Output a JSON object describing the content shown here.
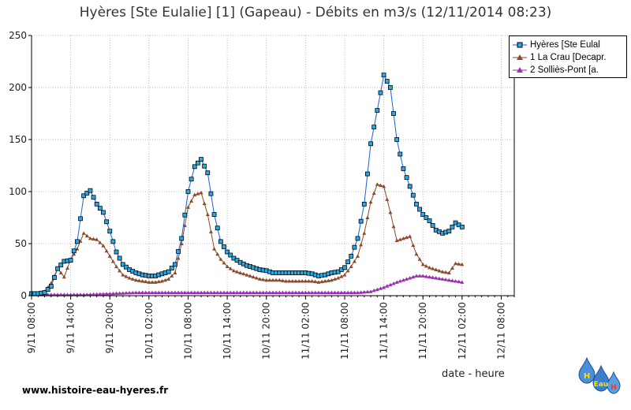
{
  "title": "Hyères [Ste Eulalie] [1] (Gapeau) - Débits en m3/s (12/11/2014 08:23)",
  "website": "www.histoire-eau-hyeres.fr",
  "logo_letters": [
    "H",
    "Eau",
    "H"
  ],
  "colors": {
    "series_0": "#1f5fd6",
    "series_0_fill": "#2aa9e8",
    "series_1": "#8b4a2b",
    "series_2": "#9b2fb0",
    "axis": "#000000",
    "grid": "#bbbbbb"
  },
  "chart_data": {
    "type": "line",
    "title": "Hyères [Ste Eulalie] [1] (Gapeau) - Débits en m3/s (12/11/2014 08:23)",
    "xlabel": "date - heure",
    "ylabel": "",
    "ylim": [
      0,
      250
    ],
    "yticks": [
      0,
      50,
      100,
      150,
      200,
      250
    ],
    "xlim_hours": [
      0,
      74
    ],
    "xticks": [
      "9/11  08:00",
      "9/11  14:00",
      "9/11  20:00",
      "10/11  02:00",
      "10/11  08:00",
      "10/11  14:00",
      "10/11  20:00",
      "11/11  02:00",
      "11/11  08:00",
      "11/11  14:00",
      "11/11  20:00",
      "12/11  02:00",
      "12/11  08:00"
    ],
    "grid": true,
    "legend_position": "top-right",
    "series": [
      {
        "name": "Hyères [Ste Eulal",
        "marker": "square",
        "points": [
          [
            0,
            2
          ],
          [
            1,
            2
          ],
          [
            2,
            3
          ],
          [
            3,
            9
          ],
          [
            4,
            26
          ],
          [
            5,
            33
          ],
          [
            6,
            34
          ],
          [
            7,
            52
          ],
          [
            8,
            96
          ],
          [
            9,
            101
          ],
          [
            10,
            88
          ],
          [
            11,
            80
          ],
          [
            12,
            62
          ],
          [
            13,
            42
          ],
          [
            14,
            30
          ],
          [
            15,
            25
          ],
          [
            16,
            22
          ],
          [
            17,
            20
          ],
          [
            18,
            19
          ],
          [
            19,
            19
          ],
          [
            20,
            21
          ],
          [
            21,
            23
          ],
          [
            22,
            30
          ],
          [
            23,
            55
          ],
          [
            24,
            100
          ],
          [
            25,
            124
          ],
          [
            26,
            131
          ],
          [
            27,
            118
          ],
          [
            28,
            78
          ],
          [
            29,
            52
          ],
          [
            30,
            42
          ],
          [
            31,
            36
          ],
          [
            32,
            32
          ],
          [
            33,
            29
          ],
          [
            34,
            27
          ],
          [
            35,
            25
          ],
          [
            36,
            24
          ],
          [
            37,
            22
          ],
          [
            38,
            22
          ],
          [
            39,
            22
          ],
          [
            40,
            22
          ],
          [
            41,
            22
          ],
          [
            42,
            22
          ],
          [
            43,
            21
          ],
          [
            44,
            19
          ],
          [
            45,
            20
          ],
          [
            46,
            22
          ],
          [
            47,
            23
          ],
          [
            48,
            27
          ],
          [
            49,
            38
          ],
          [
            50,
            55
          ],
          [
            51,
            88
          ],
          [
            52,
            146
          ],
          [
            53,
            178
          ],
          [
            54,
            212
          ],
          [
            55,
            200
          ],
          [
            56,
            150
          ],
          [
            57,
            122
          ],
          [
            58,
            105
          ],
          [
            59,
            88
          ],
          [
            60,
            78
          ],
          [
            61,
            72
          ],
          [
            62,
            63
          ],
          [
            63,
            60
          ],
          [
            64,
            62
          ],
          [
            65,
            70
          ],
          [
            66,
            66
          ]
        ]
      },
      {
        "name": "1 La Crau [Decapr.",
        "marker": "triangle",
        "points": [
          [
            0,
            2
          ],
          [
            1,
            2
          ],
          [
            2,
            4
          ],
          [
            3,
            12
          ],
          [
            4,
            26
          ],
          [
            5,
            18
          ],
          [
            6,
            35
          ],
          [
            7,
            45
          ],
          [
            8,
            60
          ],
          [
            9,
            55
          ],
          [
            10,
            54
          ],
          [
            11,
            48
          ],
          [
            12,
            38
          ],
          [
            13,
            28
          ],
          [
            14,
            20
          ],
          [
            15,
            17
          ],
          [
            16,
            15
          ],
          [
            17,
            14
          ],
          [
            18,
            13
          ],
          [
            19,
            13
          ],
          [
            20,
            14
          ],
          [
            21,
            16
          ],
          [
            22,
            22
          ],
          [
            23,
            50
          ],
          [
            24,
            85
          ],
          [
            25,
            97
          ],
          [
            26,
            99
          ],
          [
            27,
            78
          ],
          [
            28,
            45
          ],
          [
            29,
            35
          ],
          [
            30,
            28
          ],
          [
            31,
            24
          ],
          [
            32,
            22
          ],
          [
            33,
            20
          ],
          [
            34,
            18
          ],
          [
            35,
            16
          ],
          [
            36,
            15
          ],
          [
            37,
            15
          ],
          [
            38,
            15
          ],
          [
            39,
            14
          ],
          [
            40,
            14
          ],
          [
            41,
            14
          ],
          [
            42,
            14
          ],
          [
            43,
            14
          ],
          [
            44,
            13
          ],
          [
            45,
            14
          ],
          [
            46,
            15
          ],
          [
            47,
            17
          ],
          [
            48,
            20
          ],
          [
            49,
            28
          ],
          [
            50,
            38
          ],
          [
            51,
            60
          ],
          [
            52,
            90
          ],
          [
            53,
            107
          ],
          [
            54,
            105
          ],
          [
            55,
            80
          ],
          [
            56,
            53
          ],
          [
            57,
            55
          ],
          [
            58,
            57
          ],
          [
            59,
            40
          ],
          [
            60,
            30
          ],
          [
            61,
            27
          ],
          [
            62,
            25
          ],
          [
            63,
            23
          ],
          [
            64,
            22
          ],
          [
            65,
            31
          ],
          [
            66,
            30
          ]
        ]
      },
      {
        "name": "2 Solliès-Pont [a.",
        "marker": "triangle",
        "points": [
          [
            0,
            1
          ],
          [
            4,
            1
          ],
          [
            8,
            1
          ],
          [
            12,
            2
          ],
          [
            16,
            3
          ],
          [
            20,
            3
          ],
          [
            24,
            3
          ],
          [
            28,
            3
          ],
          [
            32,
            3
          ],
          [
            36,
            3
          ],
          [
            40,
            3
          ],
          [
            44,
            3
          ],
          [
            48,
            3
          ],
          [
            50,
            3
          ],
          [
            52,
            4
          ],
          [
            54,
            8
          ],
          [
            56,
            13
          ],
          [
            58,
            17
          ],
          [
            59,
            19
          ],
          [
            60,
            19
          ],
          [
            61,
            18
          ],
          [
            62,
            17
          ],
          [
            63,
            16
          ],
          [
            64,
            15
          ],
          [
            65,
            14
          ],
          [
            66,
            13
          ]
        ]
      }
    ]
  }
}
